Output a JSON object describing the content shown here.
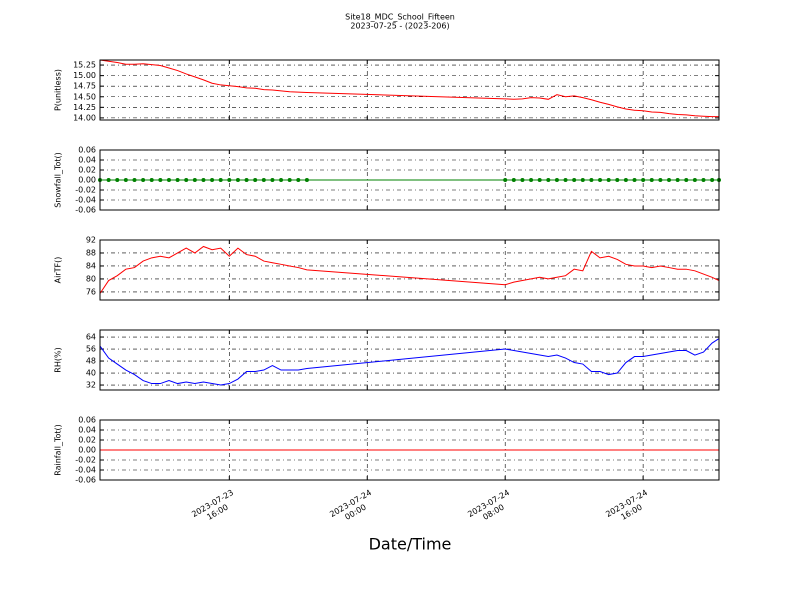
{
  "title": "Site18_MDC_School_Fifteen",
  "subtitle": "2023-07-25 - (2023-206)",
  "xlabel": "Date/Time",
  "x": [
    "2023-07-23 08:30",
    "2023-07-23 09:00",
    "2023-07-23 09:30",
    "2023-07-23 10:00",
    "2023-07-23 10:30",
    "2023-07-23 11:00",
    "2023-07-23 11:30",
    "2023-07-23 12:00",
    "2023-07-23 12:30",
    "2023-07-23 13:00",
    "2023-07-23 13:30",
    "2023-07-23 14:00",
    "2023-07-23 14:30",
    "2023-07-23 15:00",
    "2023-07-23 15:30",
    "2023-07-23 16:00",
    "2023-07-23 16:30",
    "2023-07-23 17:00",
    "2023-07-23 17:30",
    "2023-07-23 18:00",
    "2023-07-23 18:30",
    "2023-07-23 19:00",
    "2023-07-23 19:30",
    "2023-07-23 20:00",
    "2023-07-23 20:30",
    "2023-07-24 08:00",
    "2023-07-24 08:30",
    "2023-07-24 09:00",
    "2023-07-24 09:30",
    "2023-07-24 10:00",
    "2023-07-24 10:30",
    "2023-07-24 11:00",
    "2023-07-24 11:30",
    "2023-07-24 12:00",
    "2023-07-24 12:30",
    "2023-07-24 13:00",
    "2023-07-24 13:30",
    "2023-07-24 14:00",
    "2023-07-24 14:30",
    "2023-07-24 15:00",
    "2023-07-24 15:30",
    "2023-07-24 16:00",
    "2023-07-24 16:30",
    "2023-07-24 17:00",
    "2023-07-24 17:30",
    "2023-07-24 18:00",
    "2023-07-24 18:30",
    "2023-07-24 19:00",
    "2023-07-24 19:30",
    "2023-07-24 20:00",
    "2023-07-24 20:24"
  ],
  "xlim": [
    "2023-07-23 08:30",
    "2023-07-24 20:24"
  ],
  "xticks": [
    {
      "value": "2023-07-23 16:00",
      "label": "2023-07-23\n16:00"
    },
    {
      "value": "2023-07-24 00:00",
      "label": "2023-07-24\n00:00"
    },
    {
      "value": "2023-07-24 08:00",
      "label": "2023-07-24\n08:00"
    },
    {
      "value": "2023-07-24 16:00",
      "label": "2023-07-24\n16:00"
    }
  ],
  "chart_data": [
    {
      "type": "line",
      "ylabel": "P(unitless)",
      "color": "#ff0000",
      "marker": false,
      "grid": true,
      "ylim": [
        13.95,
        15.37
      ],
      "yticks": [
        {
          "value": 14,
          "label": "14.00"
        },
        14.25,
        {
          "value": 14.5,
          "label": "14.50"
        },
        14.75,
        {
          "value": 15,
          "label": "15.00"
        },
        15.25
      ],
      "values": [
        15.37,
        15.34,
        15.31,
        15.27,
        15.27,
        15.28,
        15.26,
        15.24,
        15.18,
        15.12,
        15.04,
        14.97,
        14.9,
        14.82,
        14.78,
        14.76,
        14.74,
        14.71,
        14.7,
        14.67,
        14.66,
        14.64,
        14.62,
        14.61,
        14.6,
        14.45,
        14.44,
        14.45,
        14.48,
        14.47,
        14.44,
        14.55,
        14.5,
        14.52,
        14.48,
        14.43,
        14.37,
        14.32,
        14.26,
        14.21,
        14.18,
        14.17,
        14.14,
        14.13,
        14.1,
        14.08,
        14.07,
        14.05,
        14.04,
        14.03,
        14.03
      ]
    },
    {
      "type": "line",
      "ylabel": "Snowfall_Tot()",
      "color": "#008000",
      "marker": true,
      "grid": true,
      "ylim": [
        -0.06,
        0.06
      ],
      "yticks": [
        -0.06,
        -0.04,
        -0.02,
        {
          "value": 0,
          "label": "0.00"
        },
        0.02,
        0.04,
        0.06
      ],
      "values": [
        0,
        0,
        0,
        0,
        0,
        0,
        0,
        0,
        0,
        0,
        0,
        0,
        0,
        0,
        0,
        0,
        0,
        0,
        0,
        0,
        0,
        0,
        0,
        0,
        0,
        0,
        0,
        0,
        0,
        0,
        0,
        0,
        0,
        0,
        0,
        0,
        0,
        0,
        0,
        0,
        0,
        0,
        0,
        0,
        0,
        0,
        0,
        0,
        0,
        0,
        0
      ]
    },
    {
      "type": "line",
      "ylabel": "AirTF()",
      "color": "#ff0000",
      "marker": false,
      "grid": true,
      "ylim": [
        73.5,
        92
      ],
      "yticks": [
        76,
        80,
        84,
        88,
        92
      ],
      "values": [
        75.5,
        79.5,
        81,
        83,
        83.5,
        85.5,
        86.5,
        87,
        86.5,
        88,
        89.5,
        88,
        90,
        89,
        89.5,
        87,
        89.5,
        87.5,
        87,
        85.5,
        85,
        84.5,
        84,
        83.5,
        82.8,
        78.2,
        79,
        79.5,
        80,
        80.5,
        80,
        80.5,
        81,
        83,
        82.5,
        88.5,
        86.5,
        87,
        86,
        84.5,
        84,
        84,
        83.5,
        84,
        83.5,
        83,
        83,
        82.5,
        81.5,
        80.5,
        79.5
      ]
    },
    {
      "type": "line",
      "ylabel": "RH(%)",
      "color": "#0000ff",
      "marker": false,
      "grid": true,
      "ylim": [
        28.7,
        68.7
      ],
      "yticks": [
        32,
        40,
        48,
        56,
        64
      ],
      "values": [
        58,
        50,
        46,
        42,
        39,
        35,
        33,
        33,
        35,
        33,
        34,
        33,
        34,
        33,
        32,
        33,
        36,
        41,
        41,
        42,
        45,
        42,
        42,
        42,
        43,
        56,
        55,
        54,
        53,
        52,
        51,
        52,
        50,
        47,
        46,
        41,
        41,
        39,
        40,
        47,
        51,
        51,
        52,
        53,
        54,
        55,
        55,
        52,
        54,
        60,
        63
      ]
    },
    {
      "type": "line",
      "ylabel": "Rainfall_Tot()",
      "color": "#ff0000",
      "marker": false,
      "grid": true,
      "ylim": [
        -0.06,
        0.06
      ],
      "yticks": [
        -0.06,
        -0.04,
        -0.02,
        {
          "value": 0,
          "label": "0.00"
        },
        0.02,
        0.04,
        0.06
      ],
      "values": [
        0,
        0,
        0,
        0,
        0,
        0,
        0,
        0,
        0,
        0,
        0,
        0,
        0,
        0,
        0,
        0,
        0,
        0,
        0,
        0,
        0,
        0,
        0,
        0,
        0,
        0,
        0,
        0,
        0,
        0,
        0,
        0,
        0,
        0,
        0,
        0,
        0,
        0,
        0,
        0,
        0,
        0,
        0,
        0,
        0,
        0,
        0,
        0,
        0,
        0,
        0
      ]
    }
  ]
}
